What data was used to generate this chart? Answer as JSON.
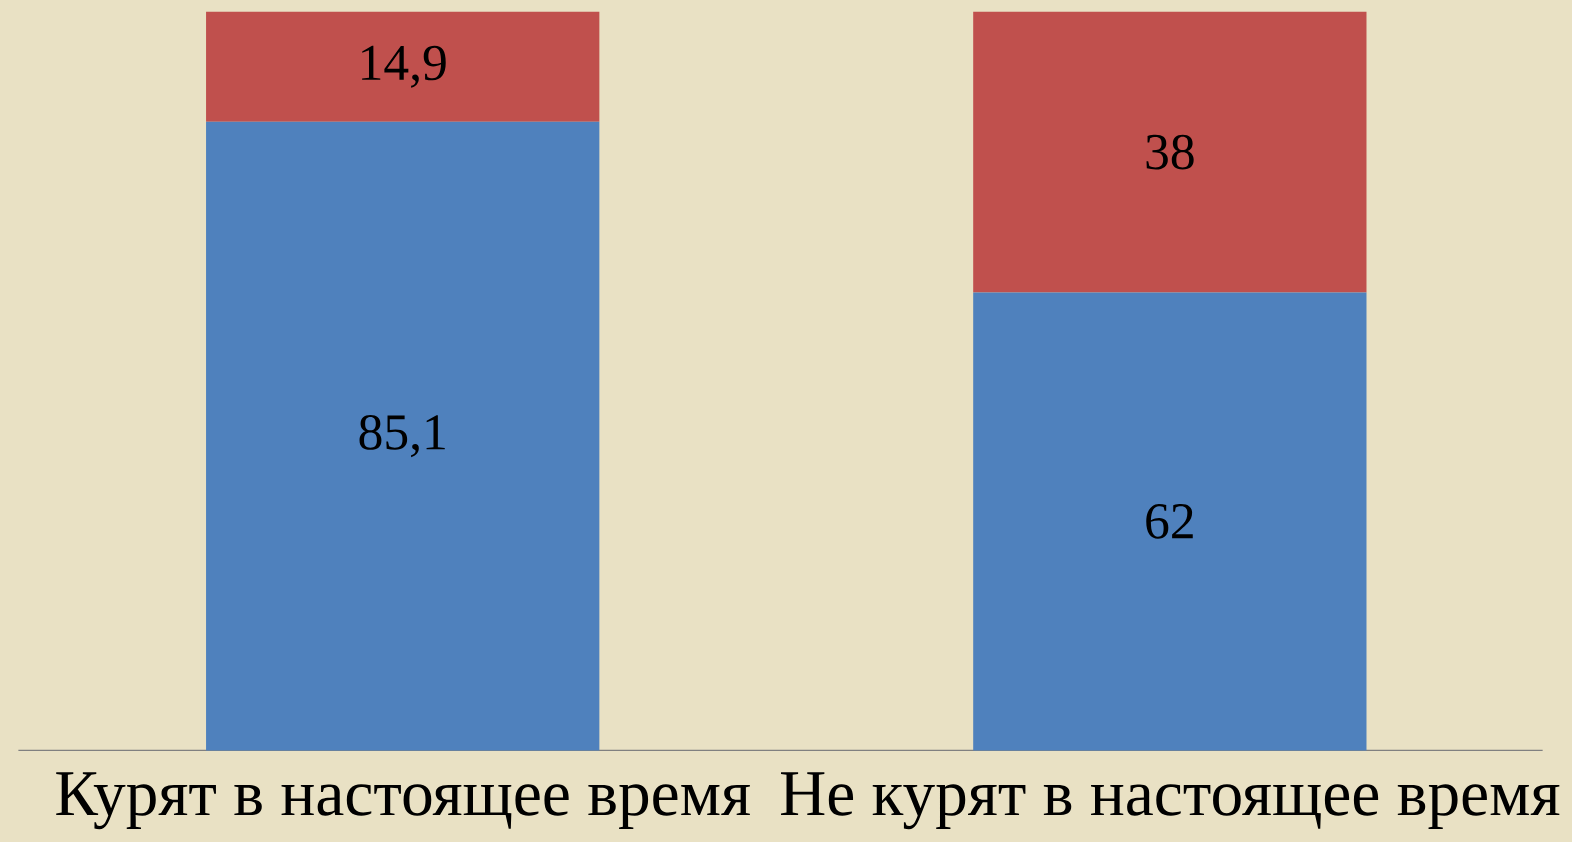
{
  "chart_data": {
    "type": "bar",
    "stacked": true,
    "categories": [
      "Курят в настоящее время",
      "Не курят в настоящее время"
    ],
    "series": [
      {
        "color": "#4f81bd",
        "values": [
          85.1,
          62
        ],
        "value_labels": [
          "85,1",
          "62"
        ]
      },
      {
        "color": "#c0504d",
        "values": [
          14.9,
          38
        ],
        "value_labels": [
          "14,9",
          "38"
        ]
      }
    ]
  }
}
